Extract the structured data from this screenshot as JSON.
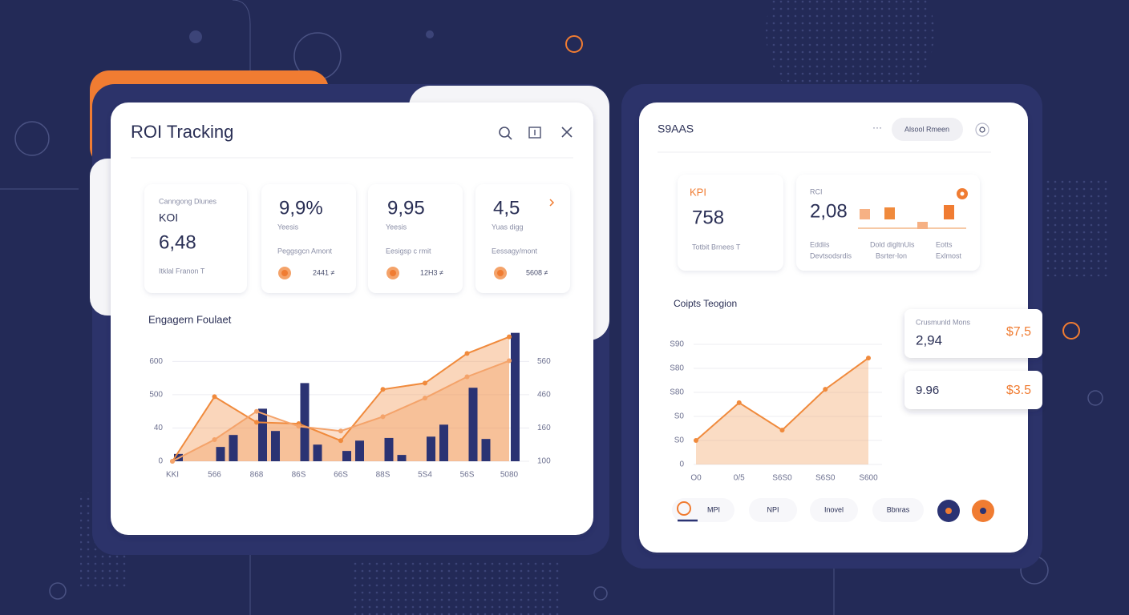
{
  "left_panel": {
    "title": "ROI Tracking",
    "kpis": [
      {
        "caption": "Canngong Dlunes",
        "label": "KOI",
        "value": "6,48",
        "footer": "Itklal Franon T"
      },
      {
        "value": "9,9%",
        "label": "Yeesis",
        "caption": "Peggsgcn Amont",
        "footer": "2441 ≠"
      },
      {
        "value": "9,95",
        "label": "Yeesis",
        "caption": "Eesigsp c rmit",
        "footer": "12H3 ≠"
      },
      {
        "value": "4,5",
        "label": "Yuas digg",
        "caption": "Eessagy/mont",
        "footer": "5608 ≠"
      }
    ]
  },
  "right_panel": {
    "title": "S9AAS",
    "button": "Alsool Rmeen",
    "kpi_cards": [
      {
        "label": "KPI",
        "value": "758",
        "footer": "Totbit Brnees T"
      },
      {
        "label": "RCI",
        "value": "2,08",
        "columns": [
          [
            "Eddiis",
            "Devtsodsrdis"
          ],
          [
            "Dold digltnUis",
            "Bsrter-lon"
          ],
          [
            "Eotts",
            "Exlmost"
          ]
        ]
      }
    ],
    "side_cards": [
      {
        "label": "Crusmunld Mons",
        "value": "2,94",
        "amount": "$7,5"
      },
      {
        "value": "9.96",
        "amount": "$3.5"
      }
    ],
    "tabs": [
      "MPI",
      "NPI",
      "Inovel",
      "Bbnras"
    ]
  },
  "chart_data": [
    {
      "type": "combo",
      "title": "Engagern Foulaet",
      "categories": [
        "KKI",
        "566",
        "868",
        "86S",
        "66S",
        "88S",
        "5S4",
        "56S",
        "5080"
      ],
      "series": [
        {
          "type": "bar",
          "color": "#2b3373",
          "values": [
            0.22,
            0.43,
            1.58,
            2.35,
            0.31,
            0.7,
            0.74,
            2.21,
            3.86
          ]
        },
        {
          "type": "bar",
          "color": "#2b3373",
          "values": [
            null,
            0.79,
            0.91,
            0.5,
            0.62,
            0.19,
            1.1,
            0.67,
            null
          ]
        },
        {
          "type": "line",
          "color": "#f08a3c",
          "values": [
            0,
            1.94,
            1.17,
            1.13,
            0.62,
            2.16,
            2.35,
            3.24,
            3.74
          ]
        },
        {
          "type": "line",
          "color": "#f4a36a",
          "values": [
            0,
            0.65,
            1.5,
            1.05,
            0.91,
            1.34,
            1.9,
            2.54,
            3.02
          ]
        }
      ],
      "ylim": [
        0,
        3.9
      ],
      "yticks": [
        0,
        {
          "value": 1,
          "label": "40"
        },
        {
          "value": 2,
          "label": "500"
        },
        {
          "value": 3,
          "label": "600"
        }
      ],
      "y2lim": [
        0,
        3.9
      ],
      "y2ticks": [
        {
          "value": 0,
          "label": "100"
        },
        {
          "value": 1,
          "label": "160"
        },
        {
          "value": 2,
          "label": "460"
        },
        {
          "value": 3,
          "label": "560"
        }
      ],
      "grid": true
    },
    {
      "type": "area",
      "title": "Coipts Teogion",
      "categories": [
        "O0",
        "0/5",
        "S6S0",
        "S6S0",
        "S600"
      ],
      "values": [
        1.0,
        2.57,
        1.43,
        3.13,
        4.43
      ],
      "color": "#f08a3c",
      "ylim": [
        0,
        5
      ],
      "yticks": [
        0,
        {
          "value": 1,
          "label": "S0"
        },
        {
          "value": 2,
          "label": "S0"
        },
        {
          "value": 3,
          "label": "S80"
        },
        {
          "value": 4,
          "label": "S80"
        },
        {
          "value": 5,
          "label": "S90"
        }
      ],
      "grid": true
    }
  ]
}
